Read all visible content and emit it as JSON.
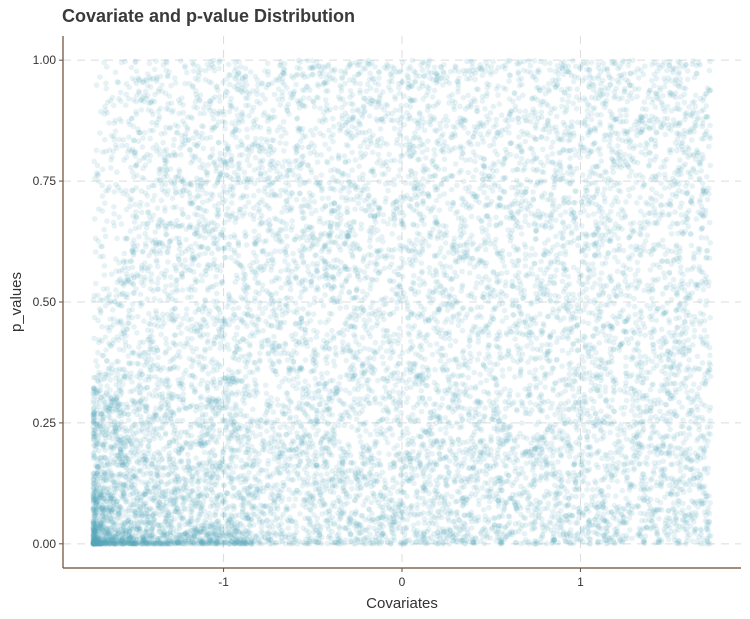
{
  "chart_data": {
    "type": "scatter",
    "title": "Covariate and p-value Distribution",
    "xlabel": "Covariates",
    "ylabel": "p_values",
    "xlim": [
      -1.9,
      1.9
    ],
    "ylim": [
      -0.05,
      1.05
    ],
    "x_ticks": [
      -1,
      0,
      1
    ],
    "x_tick_labels": [
      "-1",
      "0",
      "1"
    ],
    "y_ticks": [
      0,
      0.25,
      0.5,
      0.75,
      1
    ],
    "y_tick_labels": [
      "0.00",
      "0.25",
      "0.50",
      "0.75",
      "1.00"
    ],
    "grid": true,
    "legend": "none",
    "point_color": "#5aa5bb",
    "point_alpha": 0.15,
    "x_range": [
      -1.73,
      1.73
    ],
    "y_range": [
      0,
      1
    ],
    "n_points": 12000,
    "distribution": "covariates roughly uniform on [-1.73, 1.73]; p-values roughly uniform on [0, 1] with heavy concentration near 0 at low covariate values"
  }
}
